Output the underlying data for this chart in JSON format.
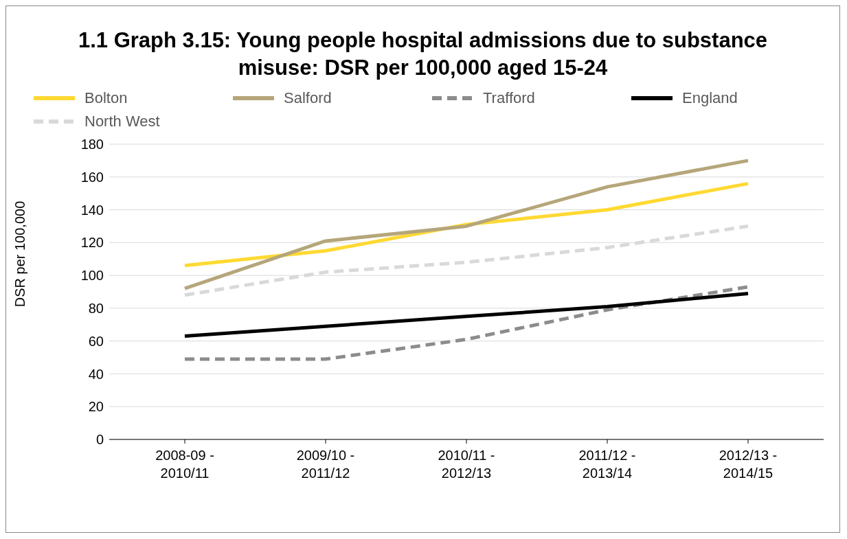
{
  "chart_data": {
    "type": "line",
    "title": "1.1 Graph 3.15: Young people hospital admissions due to substance misuse: DSR per 100,000 aged 15-24",
    "ylabel": "DSR per 100,000",
    "categories": [
      "2008-09 - 2010/11",
      "2009/10 - 2011/12",
      "2010/11 - 2012/13",
      "2011/12 - 2013/14",
      "2012/13 - 2014/15"
    ],
    "series": [
      {
        "name": "Bolton",
        "color": "#ffd932",
        "line_style": "solid",
        "values": [
          106,
          115,
          131,
          140,
          156
        ]
      },
      {
        "name": "Salford",
        "color": "#b5a67a",
        "line_style": "solid",
        "values": [
          92,
          121,
          130,
          154,
          170
        ]
      },
      {
        "name": "Trafford",
        "color": "#8c8c8c",
        "line_style": "dashed",
        "values": [
          49,
          49,
          61,
          79,
          93
        ]
      },
      {
        "name": "England",
        "color": "#000000",
        "line_style": "solid",
        "values": [
          63,
          69,
          75,
          81,
          89
        ]
      },
      {
        "name": "North West",
        "color": "#d9d9d9",
        "line_style": "dashed",
        "values": [
          88,
          102,
          108,
          117,
          130
        ]
      }
    ],
    "ylim": [
      0,
      180
    ],
    "yticks": [
      0,
      20,
      40,
      60,
      80,
      100,
      120,
      140,
      160,
      180
    ],
    "grid": "y",
    "legend": "top",
    "marker": "none"
  }
}
